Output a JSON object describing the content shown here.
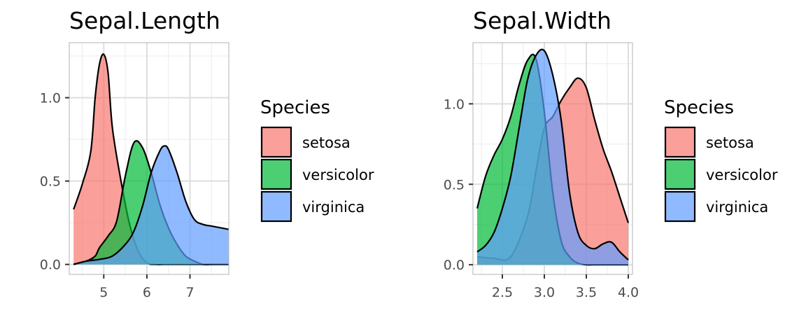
{
  "chart_data": [
    {
      "type": "area",
      "title": "Sepal.Length",
      "xlabel": "",
      "ylabel": "",
      "xlim": [
        4.2,
        7.9
      ],
      "ylim": [
        -0.06,
        1.33
      ],
      "x_ticks": [
        5,
        6,
        7
      ],
      "x_tick_labels": [
        "5",
        "6",
        "7"
      ],
      "y_ticks": [
        0,
        0.5,
        1
      ],
      "y_tick_labels": [
        "0.0",
        "0.5",
        "1.0"
      ],
      "grid": true,
      "legend": {
        "title": "Species",
        "position": "right"
      },
      "series": [
        {
          "name": "setosa",
          "color": "#F8766D",
          "x": [
            4.3,
            4.5,
            4.7,
            4.8,
            4.9,
            5.0,
            5.1,
            5.2,
            5.4,
            5.6,
            5.8,
            6.0,
            6.2,
            6.4,
            6.6,
            6.8,
            7.0,
            7.2,
            7.4,
            7.6,
            7.9
          ],
          "y": [
            0.33,
            0.48,
            0.68,
            1.0,
            1.2,
            1.26,
            1.15,
            0.82,
            0.5,
            0.24,
            0.08,
            0.01,
            0.0,
            0.0,
            0.0,
            0.0,
            0.0,
            0.0,
            0.0,
            0.0,
            0.0
          ]
        },
        {
          "name": "versicolor",
          "color": "#00BA38",
          "x": [
            4.3,
            4.6,
            4.8,
            4.9,
            5.1,
            5.3,
            5.5,
            5.7,
            5.9,
            6.1,
            6.3,
            6.5,
            6.7,
            6.9,
            7.1,
            7.3,
            7.5,
            7.7,
            7.9
          ],
          "y": [
            0.0,
            0.02,
            0.05,
            0.1,
            0.17,
            0.26,
            0.53,
            0.73,
            0.7,
            0.55,
            0.36,
            0.22,
            0.12,
            0.05,
            0.02,
            0.0,
            0.0,
            0.0,
            0.0
          ]
        },
        {
          "name": "virginica",
          "color": "#619CFF",
          "x": [
            4.3,
            4.6,
            4.9,
            5.2,
            5.5,
            5.7,
            5.9,
            6.1,
            6.3,
            6.4,
            6.5,
            6.7,
            6.9,
            7.1,
            7.3,
            7.5,
            7.7,
            7.9
          ],
          "y": [
            0.0,
            0.02,
            0.03,
            0.05,
            0.12,
            0.2,
            0.35,
            0.55,
            0.68,
            0.71,
            0.69,
            0.55,
            0.38,
            0.27,
            0.24,
            0.23,
            0.22,
            0.21
          ]
        }
      ]
    },
    {
      "type": "area",
      "title": "Sepal.Width",
      "xlabel": "",
      "ylabel": "",
      "xlim": [
        2.15,
        4.05
      ],
      "ylim": [
        -0.06,
        1.38
      ],
      "x_ticks": [
        2.5,
        3.0,
        3.5,
        4.0
      ],
      "x_tick_labels": [
        "2.5",
        "3.0",
        "3.5",
        "4.0"
      ],
      "y_ticks": [
        0,
        0.5,
        1
      ],
      "y_tick_labels": [
        "0.0",
        "0.5",
        "1.0"
      ],
      "grid": true,
      "legend": {
        "title": "Species",
        "position": "right"
      },
      "series": [
        {
          "name": "setosa",
          "color": "#F8766D",
          "x": [
            2.2,
            2.4,
            2.6,
            2.8,
            2.9,
            3.0,
            3.1,
            3.2,
            3.3,
            3.4,
            3.5,
            3.6,
            3.7,
            3.8,
            3.9,
            4.0
          ],
          "y": [
            0.05,
            0.04,
            0.05,
            0.3,
            0.58,
            0.85,
            0.92,
            1.02,
            1.1,
            1.16,
            1.1,
            0.9,
            0.72,
            0.58,
            0.42,
            0.26
          ]
        },
        {
          "name": "versicolor",
          "color": "#00BA38",
          "x": [
            2.2,
            2.3,
            2.4,
            2.5,
            2.6,
            2.7,
            2.8,
            2.9,
            3.0,
            3.1,
            3.2,
            3.3,
            3.4,
            3.5,
            3.6,
            3.8,
            4.0
          ],
          "y": [
            0.35,
            0.55,
            0.68,
            0.78,
            0.92,
            1.12,
            1.27,
            1.28,
            0.95,
            0.45,
            0.15,
            0.05,
            0.01,
            0.0,
            0.0,
            0.0,
            0.0
          ]
        },
        {
          "name": "virginica",
          "color": "#619CFF",
          "x": [
            2.2,
            2.3,
            2.4,
            2.5,
            2.6,
            2.7,
            2.8,
            2.9,
            3.0,
            3.1,
            3.2,
            3.3,
            3.4,
            3.5,
            3.6,
            3.7,
            3.8,
            3.9,
            4.0
          ],
          "y": [
            0.08,
            0.12,
            0.2,
            0.35,
            0.55,
            0.85,
            1.15,
            1.3,
            1.33,
            1.18,
            0.9,
            0.45,
            0.2,
            0.12,
            0.1,
            0.13,
            0.14,
            0.08,
            0.03
          ]
        }
      ]
    }
  ]
}
